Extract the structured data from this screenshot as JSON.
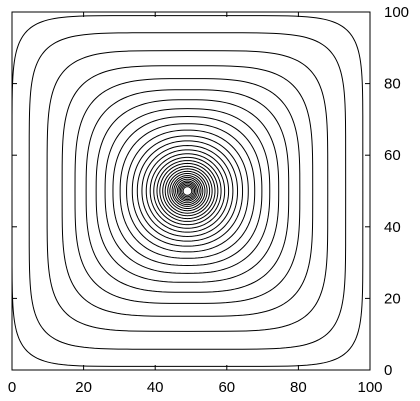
{
  "chart_data": {
    "type": "contour",
    "title": "",
    "xlabel": "",
    "ylabel": "",
    "xlim": [
      0,
      100
    ],
    "ylim": [
      0,
      100
    ],
    "x_ticks": [
      0,
      20,
      40,
      60,
      80,
      100
    ],
    "y_ticks": [
      0,
      20,
      40,
      60,
      80,
      100
    ],
    "y_axis_side": "right",
    "grid": false,
    "legend": "none",
    "center": [
      49,
      50
    ],
    "contour_radii": [
      1.2,
      1.6,
      2.0,
      2.4,
      2.8,
      3.3,
      3.8,
      4.3,
      4.9,
      5.5,
      6.2,
      6.9,
      7.7,
      8.5,
      9.4,
      10.4,
      11.5,
      12.7,
      14.0,
      15.4,
      17.0,
      18.8,
      20.8,
      23.0,
      25.5,
      28.3,
      31.4,
      35.0,
      39.2,
      44.2,
      49.0
    ],
    "line_color": "#000000"
  }
}
